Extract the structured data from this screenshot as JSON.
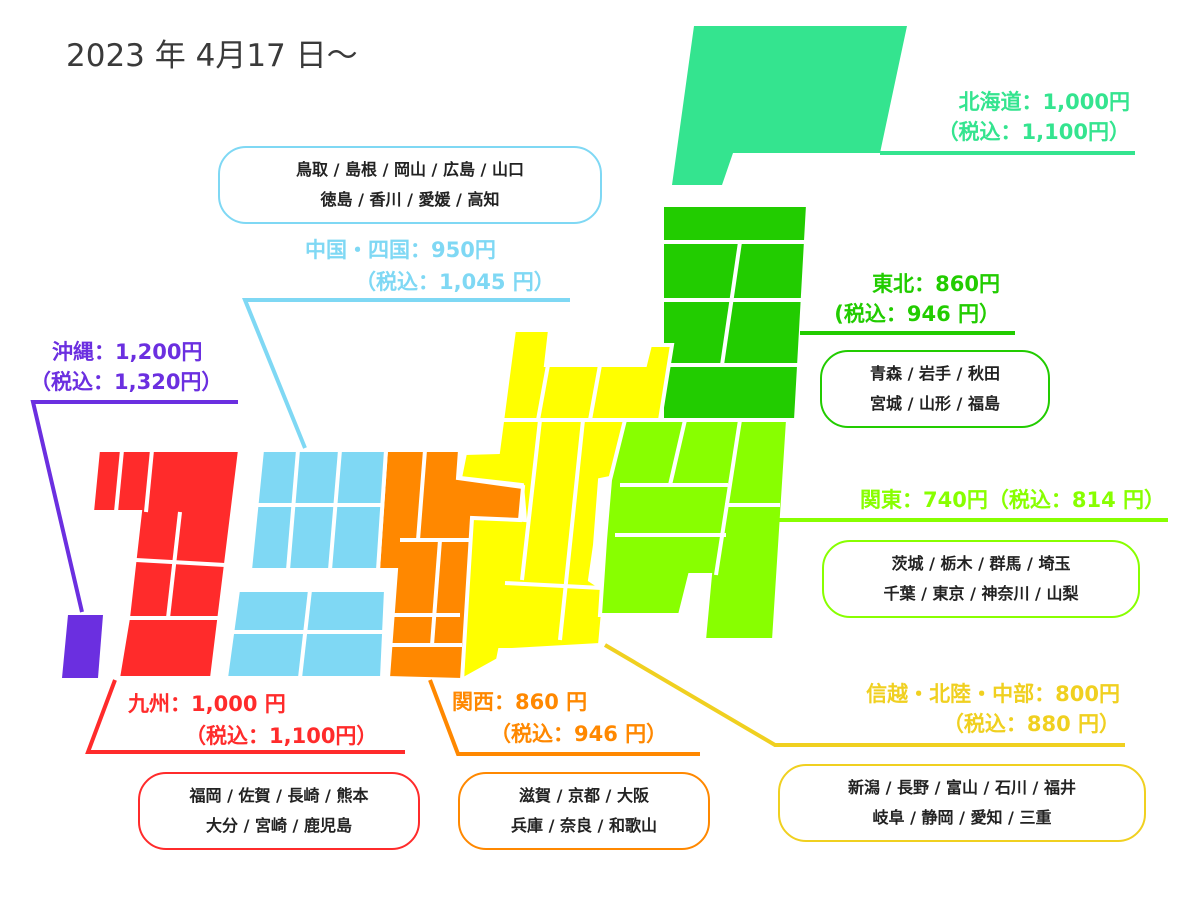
{
  "date": "2023 年 4月17 日〜",
  "colors": {
    "hokkaido": "#34e48f",
    "tohoku": "#22cc00",
    "kanto": "#88ff00",
    "chubu": "#ffff00",
    "kansai": "#ff8800",
    "chugoku": "#7fd8f4",
    "kyushu": "#ff2b2b",
    "okinawa": "#6b2fe0"
  },
  "regions": {
    "hokkaido": {
      "price": "北海道：1,000円",
      "tax": "（税込：1,100円）"
    },
    "tohoku": {
      "price": "東北：860円",
      "tax": "(税込：946 円）",
      "prefs": [
        "青森 / 岩手 / 秋田",
        "宮城 / 山形 / 福島"
      ]
    },
    "kanto": {
      "price": "関東：740円（税込：814 円）",
      "prefs": [
        "茨城 / 栃木 / 群馬 / 埼玉",
        "千葉 / 東京 / 神奈川 / 山梨"
      ]
    },
    "chubu": {
      "price": "信越・北陸・中部：800円",
      "tax": "（税込：880 円）",
      "prefs": [
        "新潟 / 長野 / 富山 / 石川 / 福井",
        "岐阜 / 静岡 / 愛知 / 三重"
      ]
    },
    "kansai": {
      "price": "関西：860 円",
      "tax": "（税込：946 円）",
      "prefs": [
        "滋賀 / 京都 / 大阪",
        "兵庫 / 奈良 / 和歌山"
      ]
    },
    "chugoku": {
      "price": "中国・四国：950円",
      "tax": "（税込：1,045 円）",
      "prefs": [
        "鳥取 / 島根 / 岡山 / 広島 / 山口",
        "徳島 / 香川 / 愛媛 / 高知"
      ]
    },
    "kyushu": {
      "price": "九州：1,000 円",
      "tax": "（税込：1,100円）",
      "prefs": [
        "福岡 / 佐賀 / 長崎 / 熊本",
        "大分 / 宮崎 / 鹿児島"
      ]
    },
    "okinawa": {
      "price": "沖縄：1,200円",
      "tax": "（税込：1,320円）"
    }
  }
}
